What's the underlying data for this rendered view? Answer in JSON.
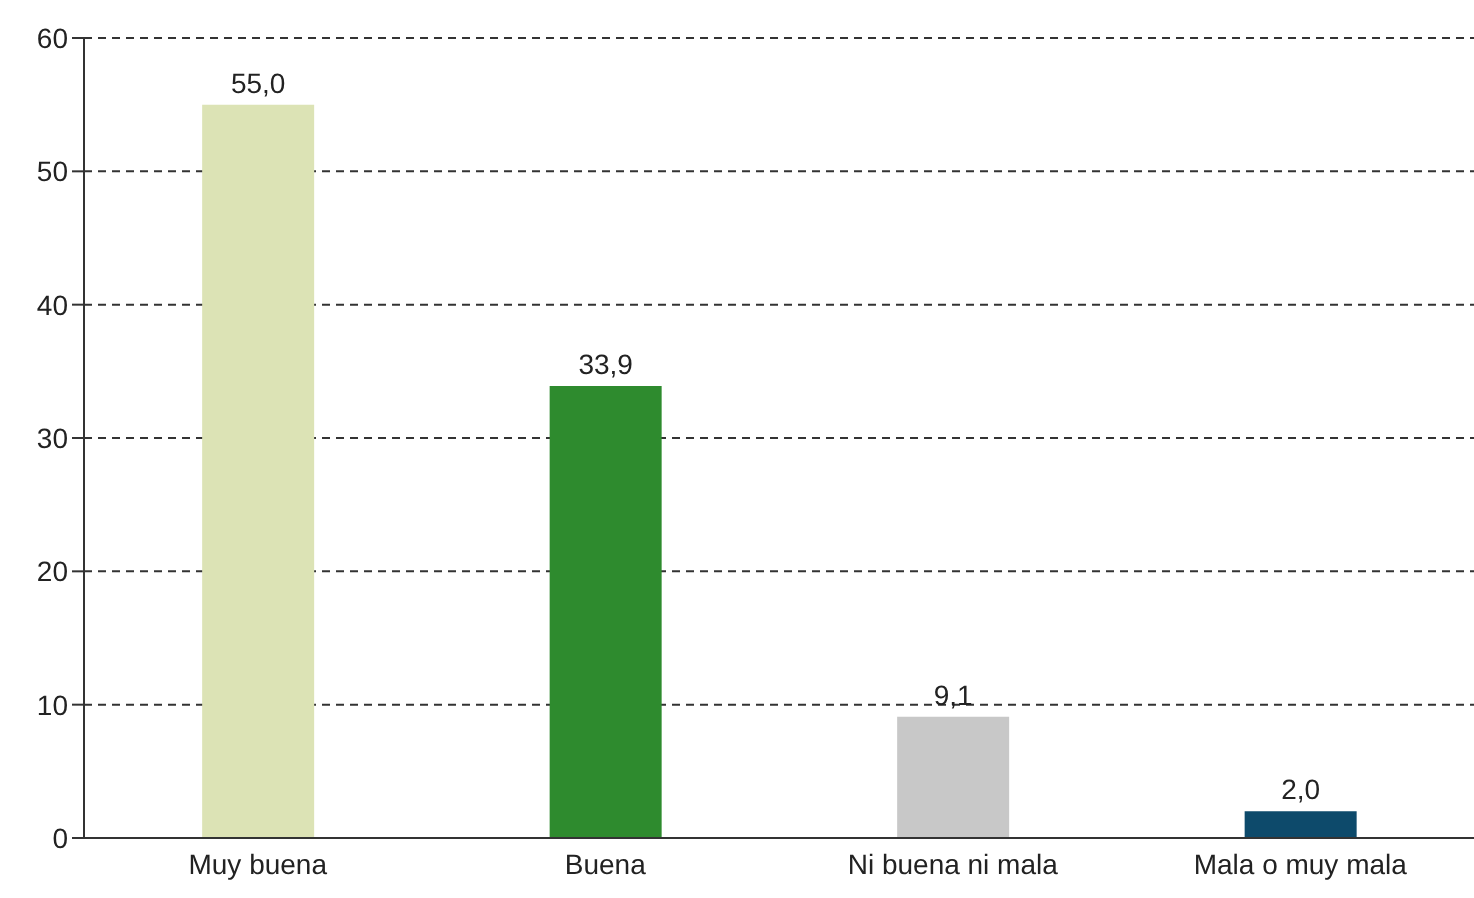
{
  "chart_data": {
    "type": "bar",
    "categories": [
      "Muy buena",
      "Buena",
      "Ni buena ni mala",
      "Mala o muy mala"
    ],
    "values": [
      55.0,
      33.9,
      9.1,
      2.0
    ],
    "colors": [
      "#dce3b5",
      "#2e8b2e",
      "#c8c8c8",
      "#0d4a6b"
    ],
    "value_labels": [
      "55,0",
      "33,9",
      "9,1",
      "2,0"
    ],
    "ylim": [
      0,
      60
    ],
    "yticks": [
      0,
      10,
      20,
      30,
      40,
      50,
      60
    ],
    "grid": "y"
  }
}
